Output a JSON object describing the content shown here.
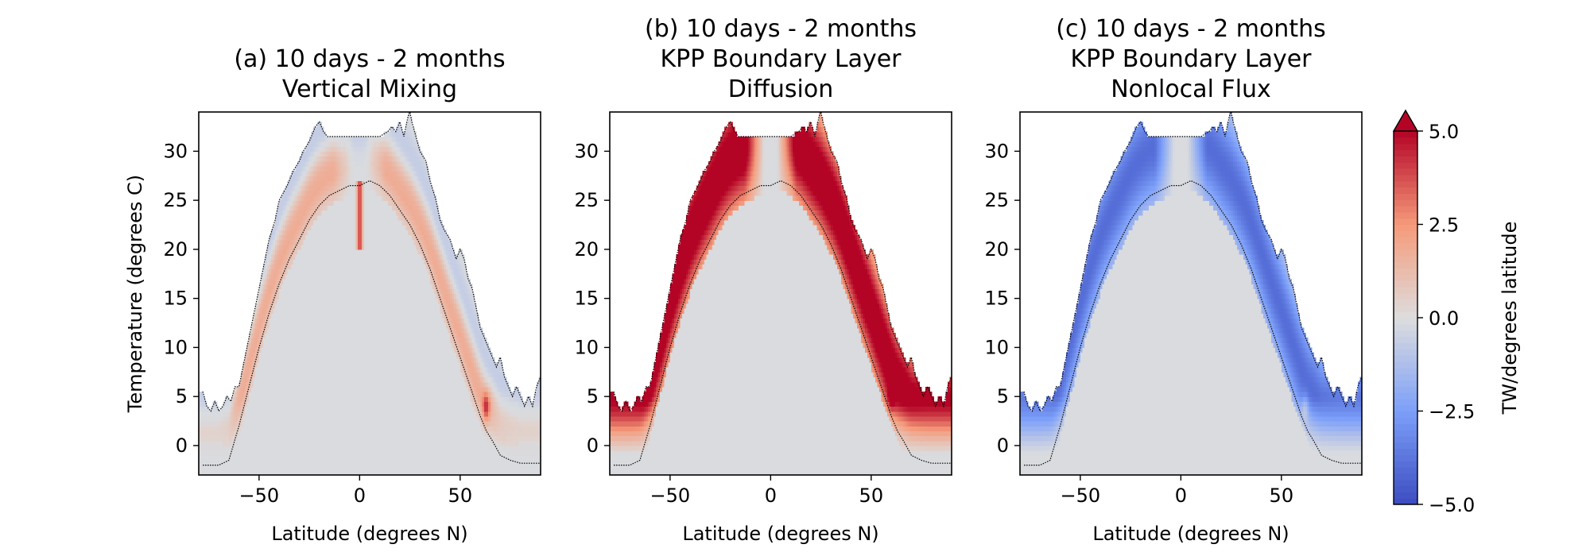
{
  "colors": {
    "min": "#3b4cc0",
    "mid": "#dddddd",
    "max": "#b40426",
    "background": "#d5d9df"
  },
  "colorbar": {
    "label": "TW/degrees latitude",
    "range": [
      -5.0,
      5.0
    ],
    "ticks": [
      -5.0,
      -2.5,
      0.0,
      2.5,
      5.0
    ],
    "tick_labels": [
      "−5.0",
      "−2.5",
      "0.0",
      "2.5",
      "5.0"
    ],
    "extend": "max",
    "colormap": "coolwarm"
  },
  "chart_data": [
    {
      "type": "heatmap",
      "title_lines": [
        "(a) 10 days - 2 months",
        "Vertical Mixing"
      ],
      "xlabel": "Latitude (degrees N)",
      "ylabel": "Temperature (degrees C)",
      "xlim": [
        -80,
        90
      ],
      "ylim": [
        -3,
        34
      ],
      "xticks": [
        -50,
        0,
        50
      ],
      "yticks": [
        0,
        5,
        10,
        15,
        20,
        25,
        30
      ],
      "value_range": [
        -5,
        5
      ],
      "features": [
        {
          "kind": "positive_band",
          "peak": 2.0,
          "width": 3.5
        },
        {
          "kind": "negative_band_upper",
          "peak": -1.1,
          "width": 3.0
        },
        {
          "kind": "equatorial_spike",
          "lat": 0,
          "temp_range": [
            20,
            27
          ],
          "peak": 4.0
        },
        {
          "kind": "spot",
          "lat": 63,
          "temp": 4,
          "peak": 3.0
        }
      ]
    },
    {
      "type": "heatmap",
      "title_lines": [
        "(b) 10 days - 2 months",
        "KPP Boundary Layer",
        "Diffusion"
      ],
      "xlabel": "Latitude (degrees N)",
      "ylabel": "",
      "xlim": [
        -80,
        90
      ],
      "ylim": [
        -3,
        34
      ],
      "xticks": [
        -50,
        0,
        50
      ],
      "yticks": [
        0,
        5,
        10,
        15,
        20,
        25,
        30
      ],
      "value_range": [
        -5,
        5
      ],
      "features": [
        {
          "kind": "positive_band",
          "peak": 6.0,
          "width": 6.0
        },
        {
          "kind": "spot",
          "lat": 60,
          "temp": 5,
          "peak": 2.0
        }
      ]
    },
    {
      "type": "heatmap",
      "title_lines": [
        "(c) 10 days - 2 months",
        "KPP Boundary Layer",
        "Nonlocal Flux"
      ],
      "xlabel": "Latitude (degrees N)",
      "ylabel": "",
      "xlim": [
        -80,
        90
      ],
      "ylim": [
        -3,
        34
      ],
      "xticks": [
        -50,
        0,
        50
      ],
      "yticks": [
        0,
        5,
        10,
        15,
        20,
        25,
        30
      ],
      "value_range": [
        -5,
        5
      ],
      "features": [
        {
          "kind": "negative_band",
          "peak": -4.0,
          "width": 6.0
        },
        {
          "kind": "spot",
          "lat": 62,
          "temp": 4,
          "peak": 1.5
        }
      ]
    }
  ],
  "outlines": {
    "upper": [
      [
        -78,
        5.5
      ],
      [
        -76,
        4
      ],
      [
        -74,
        3.5
      ],
      [
        -72,
        4.5
      ],
      [
        -70,
        3.5
      ],
      [
        -68,
        4
      ],
      [
        -66,
        5
      ],
      [
        -64,
        4.5
      ],
      [
        -62,
        6
      ],
      [
        -60,
        6
      ],
      [
        -58,
        8
      ],
      [
        -55,
        11
      ],
      [
        -52,
        14
      ],
      [
        -50,
        16
      ],
      [
        -48,
        18
      ],
      [
        -45,
        21
      ],
      [
        -42,
        23
      ],
      [
        -40,
        25
      ],
      [
        -36,
        26.5
      ],
      [
        -33,
        28
      ],
      [
        -30,
        29
      ],
      [
        -28,
        30
      ],
      [
        -25,
        31
      ],
      [
        -22,
        32.5
      ],
      [
        -20,
        33
      ],
      [
        -18,
        32
      ],
      [
        -16,
        31.5
      ],
      [
        -10,
        31.5
      ],
      [
        -5,
        31.5
      ],
      [
        0,
        31.5
      ],
      [
        5,
        31.5
      ],
      [
        10,
        31.5
      ],
      [
        14,
        32
      ],
      [
        16,
        32.5
      ],
      [
        18,
        32
      ],
      [
        20,
        33
      ],
      [
        22,
        31.5
      ],
      [
        24,
        33.5
      ],
      [
        25,
        34
      ],
      [
        26,
        33
      ],
      [
        28,
        31.5
      ],
      [
        30,
        30
      ],
      [
        33,
        29
      ],
      [
        35,
        27
      ],
      [
        38,
        25
      ],
      [
        40,
        23
      ],
      [
        42,
        22
      ],
      [
        45,
        21
      ],
      [
        48,
        19
      ],
      [
        50,
        20
      ],
      [
        52,
        19
      ],
      [
        54,
        17
      ],
      [
        56,
        16
      ],
      [
        58,
        14
      ],
      [
        60,
        12
      ],
      [
        62,
        11
      ],
      [
        64,
        10
      ],
      [
        66,
        9
      ],
      [
        68,
        8
      ],
      [
        70,
        9
      ],
      [
        72,
        7
      ],
      [
        74,
        6
      ],
      [
        76,
        5
      ],
      [
        78,
        6
      ],
      [
        80,
        5
      ],
      [
        82,
        4
      ],
      [
        84,
        5
      ],
      [
        86,
        4
      ],
      [
        88,
        6
      ],
      [
        90,
        7
      ]
    ],
    "lower": [
      [
        -78,
        -2
      ],
      [
        -70,
        -2
      ],
      [
        -65,
        -1.5
      ],
      [
        -60,
        2
      ],
      [
        -55,
        6
      ],
      [
        -50,
        10
      ],
      [
        -45,
        13.5
      ],
      [
        -40,
        16.5
      ],
      [
        -35,
        19
      ],
      [
        -30,
        21
      ],
      [
        -25,
        23
      ],
      [
        -20,
        24.5
      ],
      [
        -15,
        25.5
      ],
      [
        -10,
        26
      ],
      [
        -5,
        26.5
      ],
      [
        0,
        26.5
      ],
      [
        5,
        27
      ],
      [
        10,
        26.5
      ],
      [
        15,
        25.5
      ],
      [
        20,
        24
      ],
      [
        25,
        22.5
      ],
      [
        30,
        20.5
      ],
      [
        35,
        18
      ],
      [
        40,
        15
      ],
      [
        45,
        12
      ],
      [
        50,
        9
      ],
      [
        55,
        6
      ],
      [
        60,
        3
      ],
      [
        63,
        1.5
      ],
      [
        66,
        0.5
      ],
      [
        70,
        -1
      ],
      [
        75,
        -1.5
      ],
      [
        80,
        -1.8
      ],
      [
        90,
        -1.8
      ]
    ]
  }
}
